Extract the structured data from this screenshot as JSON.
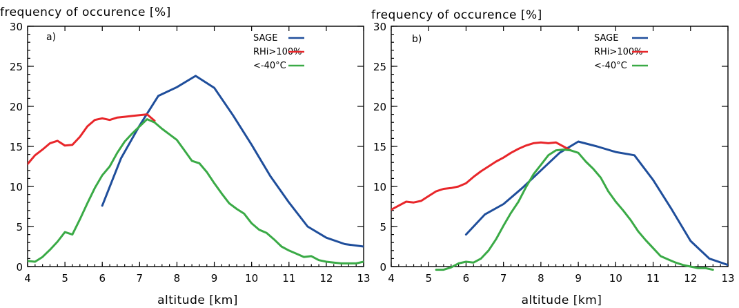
{
  "chart_data": [
    {
      "type": "line",
      "panel_label": "a)",
      "ylabel": "frequency of occurence [%]",
      "xlabel": "altitude [km]",
      "xlim": [
        4,
        13
      ],
      "ylim": [
        0,
        30
      ],
      "xticks": [
        4,
        5,
        6,
        7,
        8,
        9,
        10,
        11,
        12,
        13
      ],
      "yticks": [
        0,
        5,
        10,
        15,
        20,
        25,
        30
      ],
      "grid": false,
      "legend_position": "top-right",
      "series": [
        {
          "name": "SAGE",
          "color": "#1f4e9b",
          "x": [
            6.0,
            6.5,
            7.0,
            7.5,
            8.0,
            8.5,
            9.0,
            9.5,
            10.0,
            10.5,
            11.0,
            11.5,
            12.0,
            12.5,
            13.0
          ],
          "y": [
            7.6,
            13.5,
            17.6,
            21.3,
            22.4,
            23.8,
            22.3,
            18.9,
            15.2,
            11.3,
            8.0,
            5.0,
            3.6,
            2.8,
            2.5
          ]
        },
        {
          "name": "RHi>100%",
          "color": "#e8262a",
          "x": [
            4.0,
            4.2,
            4.4,
            4.6,
            4.8,
            5.0,
            5.2,
            5.4,
            5.6,
            5.8,
            6.0,
            6.2,
            6.4,
            6.6,
            6.8,
            7.0,
            7.2,
            7.4
          ],
          "y": [
            12.8,
            13.9,
            14.6,
            15.4,
            15.7,
            15.1,
            15.2,
            16.2,
            17.5,
            18.3,
            18.5,
            18.3,
            18.6,
            18.7,
            18.8,
            18.9,
            19.0,
            18.2
          ]
        },
        {
          "name": "<-40°C",
          "color": "#3aaa46",
          "x": [
            4.0,
            4.2,
            4.4,
            4.6,
            4.8,
            5.0,
            5.2,
            5.4,
            5.6,
            5.8,
            6.0,
            6.2,
            6.4,
            6.6,
            6.8,
            7.0,
            7.2,
            7.4,
            7.6,
            7.8,
            8.0,
            8.2,
            8.4,
            8.6,
            8.8,
            9.0,
            9.2,
            9.4,
            9.6,
            9.8,
            10.0,
            10.2,
            10.4,
            10.6,
            10.8,
            11.0,
            11.2,
            11.4,
            11.6,
            11.8,
            12.0,
            12.2,
            12.4,
            12.6,
            12.8,
            13.0
          ],
          "y": [
            0.7,
            0.6,
            1.2,
            2.1,
            3.1,
            4.3,
            4.0,
            5.9,
            7.9,
            9.8,
            11.4,
            12.5,
            14.2,
            15.6,
            16.6,
            17.5,
            18.4,
            18.0,
            17.2,
            16.5,
            15.8,
            14.5,
            13.2,
            12.9,
            11.8,
            10.4,
            9.1,
            7.9,
            7.2,
            6.6,
            5.4,
            4.6,
            4.2,
            3.4,
            2.5,
            2.0,
            1.6,
            1.2,
            1.3,
            0.8,
            0.6,
            0.5,
            0.4,
            0.4,
            0.4,
            0.6
          ]
        }
      ]
    },
    {
      "type": "line",
      "panel_label": "b)",
      "ylabel": "frequency of occurence [%]",
      "xlabel": "altitude [km]",
      "xlim": [
        4,
        13
      ],
      "ylim": [
        0,
        30
      ],
      "xticks": [
        4,
        5,
        6,
        7,
        8,
        9,
        10,
        11,
        12,
        13
      ],
      "yticks": [
        0,
        5,
        10,
        15,
        20,
        25,
        30
      ],
      "grid": false,
      "legend_position": "top-right",
      "series": [
        {
          "name": "SAGE",
          "color": "#1f4e9b",
          "x": [
            6.0,
            6.5,
            7.0,
            7.5,
            8.0,
            8.5,
            9.0,
            9.5,
            10.0,
            10.5,
            11.0,
            11.5,
            12.0,
            12.5,
            13.0
          ],
          "y": [
            4.0,
            6.5,
            7.8,
            9.8,
            12.0,
            14.2,
            15.6,
            15.0,
            14.3,
            13.9,
            10.8,
            7.1,
            3.2,
            1.0,
            0.2
          ]
        },
        {
          "name": "RHi>100%",
          "color": "#e8262a",
          "x": [
            4.0,
            4.2,
            4.4,
            4.6,
            4.8,
            5.0,
            5.2,
            5.4,
            5.6,
            5.8,
            6.0,
            6.2,
            6.4,
            6.6,
            6.8,
            7.0,
            7.2,
            7.4,
            7.6,
            7.8,
            8.0,
            8.2,
            8.4,
            8.6,
            8.8
          ],
          "y": [
            7.1,
            7.6,
            8.1,
            8.0,
            8.2,
            8.8,
            9.4,
            9.7,
            9.8,
            10.0,
            10.4,
            11.2,
            11.9,
            12.5,
            13.1,
            13.6,
            14.2,
            14.7,
            15.1,
            15.4,
            15.5,
            15.4,
            15.5,
            15.0,
            14.5
          ]
        },
        {
          "name": "<-40°C",
          "color": "#3aaa46",
          "x": [
            5.2,
            5.4,
            5.6,
            5.8,
            6.0,
            6.2,
            6.4,
            6.6,
            6.8,
            7.0,
            7.2,
            7.4,
            7.6,
            7.8,
            8.0,
            8.2,
            8.4,
            8.6,
            8.8,
            9.0,
            9.2,
            9.4,
            9.6,
            9.8,
            10.0,
            10.2,
            10.4,
            10.6,
            10.8,
            11.0,
            11.2,
            11.4,
            11.6,
            11.8,
            12.0,
            12.2,
            12.4,
            12.6
          ],
          "y": [
            -0.4,
            -0.4,
            -0.1,
            0.4,
            0.6,
            0.5,
            1.0,
            2.0,
            3.4,
            5.1,
            6.7,
            8.1,
            9.9,
            11.5,
            12.7,
            13.9,
            14.5,
            14.6,
            14.5,
            14.2,
            13.1,
            12.2,
            11.1,
            9.4,
            8.1,
            7.0,
            5.8,
            4.4,
            3.3,
            2.3,
            1.3,
            0.9,
            0.5,
            0.2,
            0.0,
            -0.2,
            -0.2,
            -0.4
          ]
        }
      ]
    }
  ]
}
